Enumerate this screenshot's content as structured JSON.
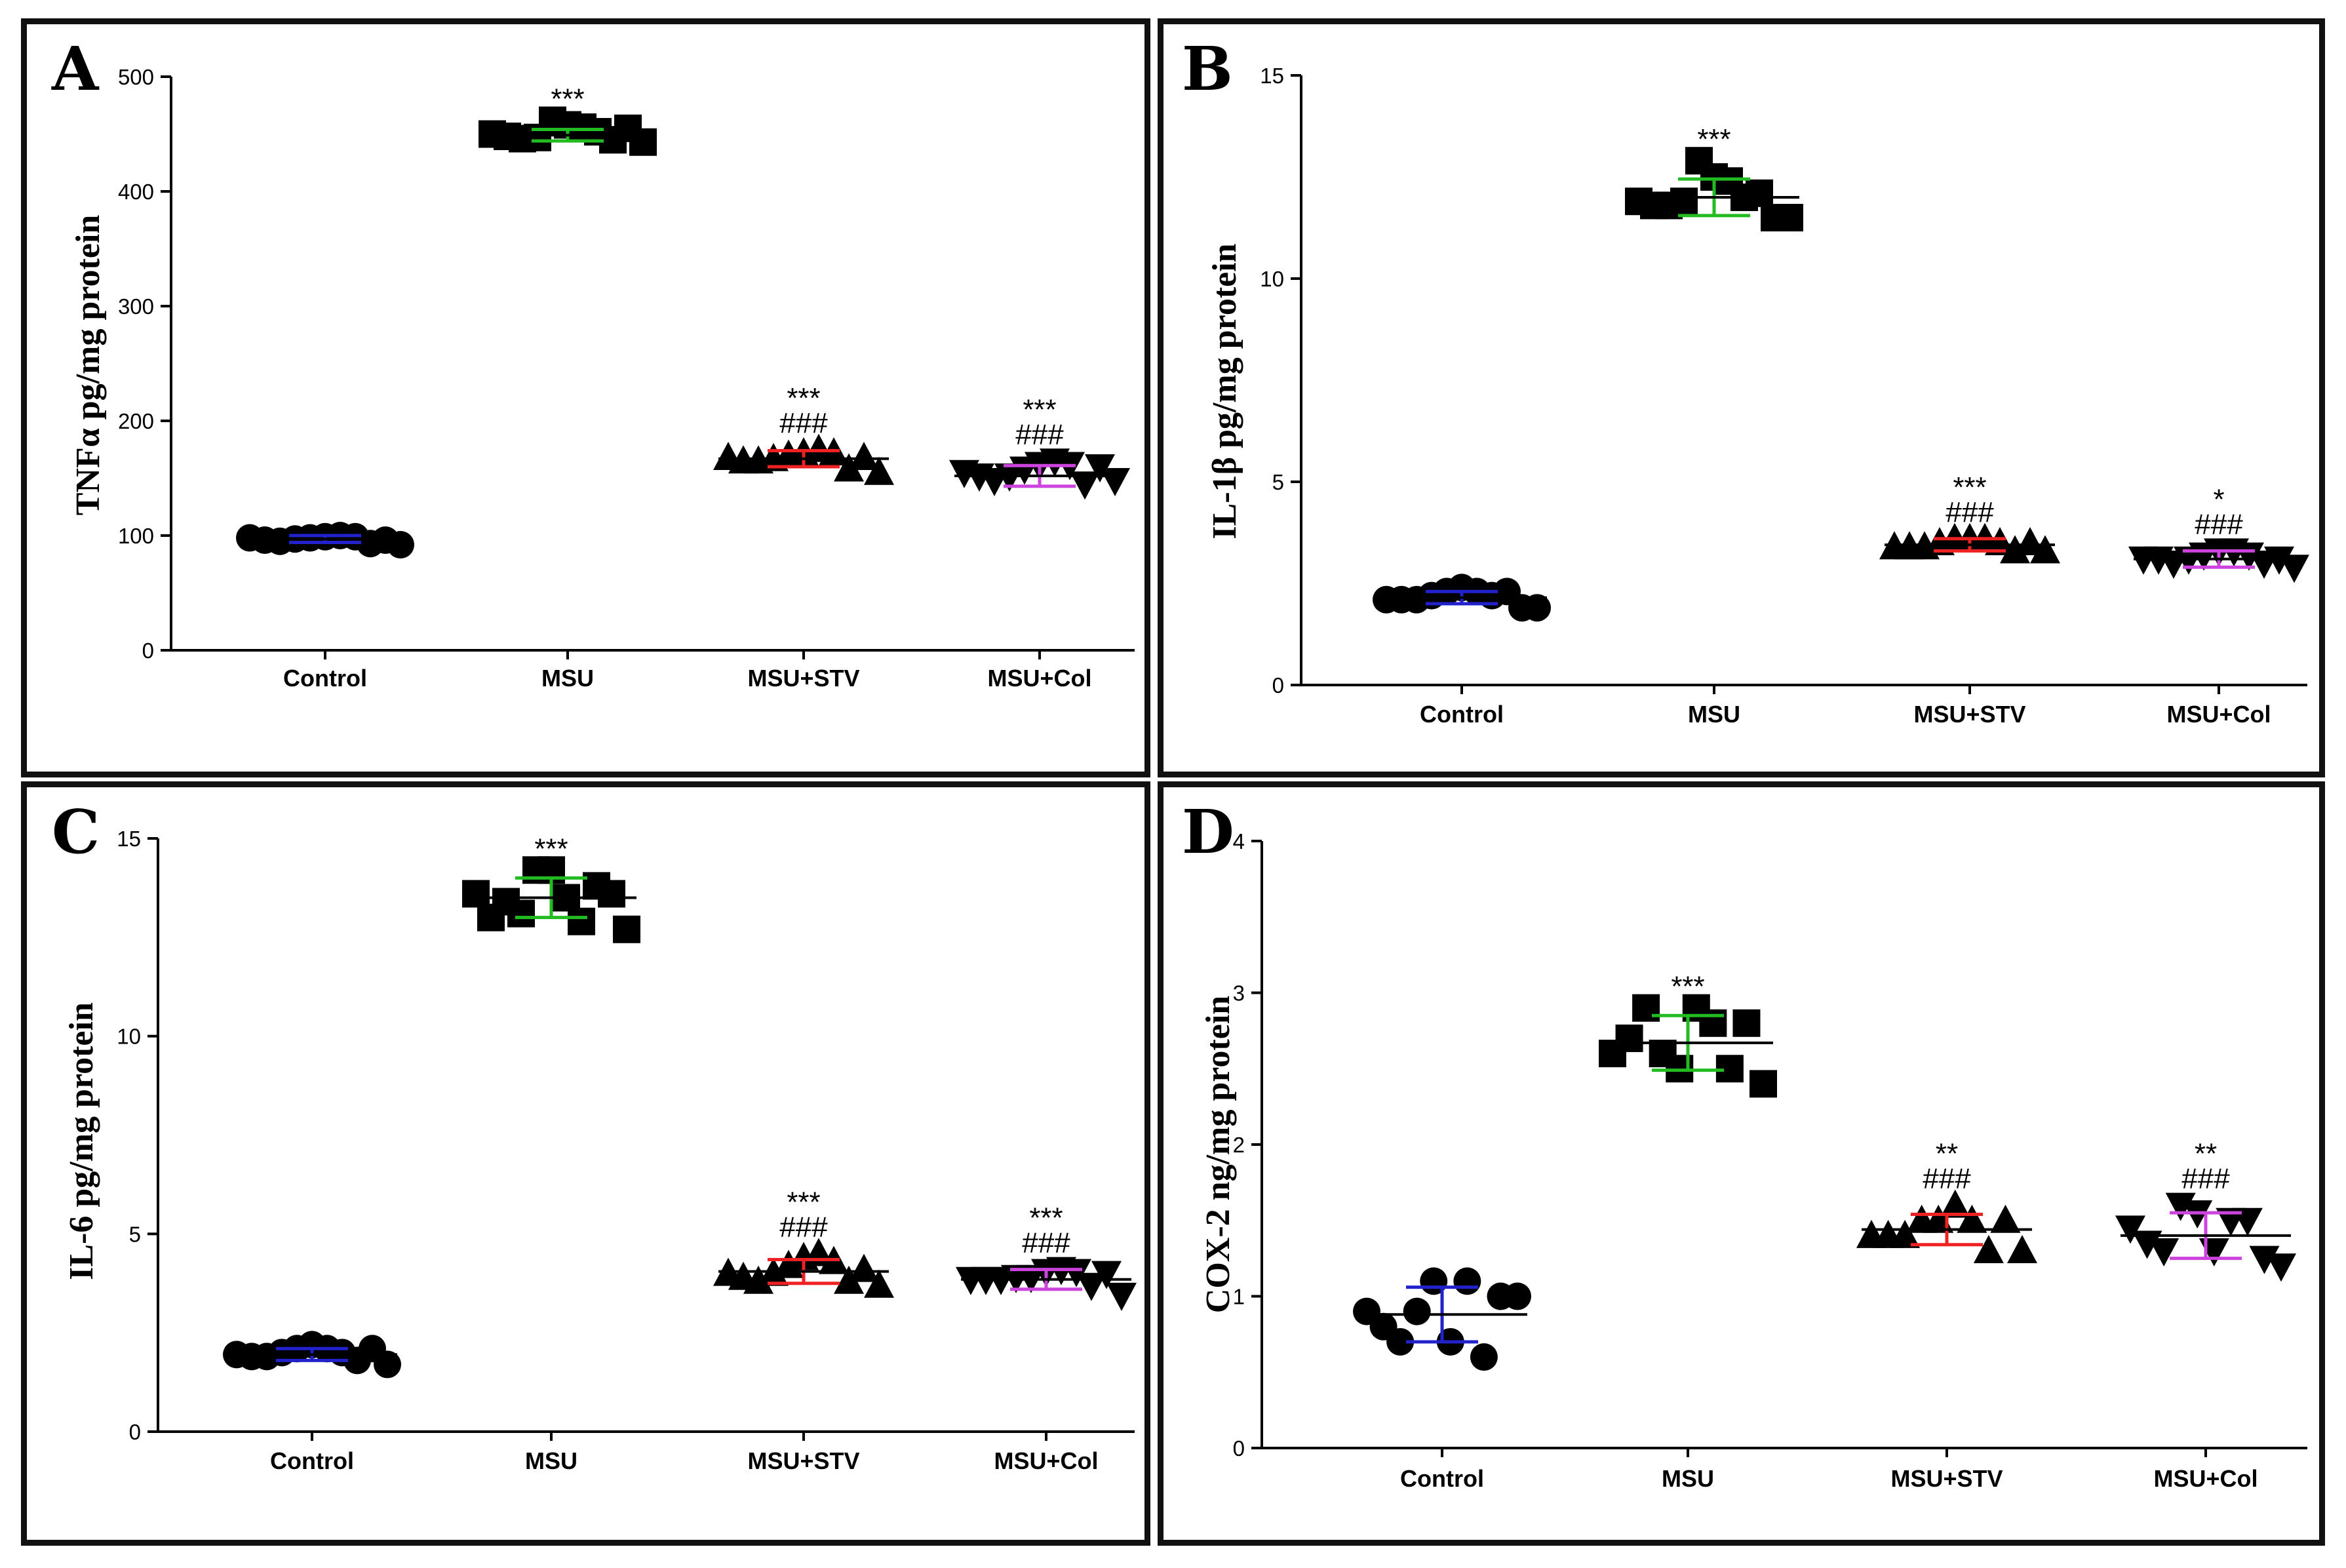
{
  "chart_data": [
    {
      "type": "scatter",
      "panel": "A",
      "title": "",
      "ylabel": "TNFα pg/mg protein",
      "ylim": [
        0,
        500
      ],
      "yticks": [
        "0",
        "100",
        "200",
        "300",
        "400",
        "500"
      ],
      "categories": [
        "Control",
        "MSU",
        "MSU+STV",
        "MSU+Col"
      ],
      "marker": [
        "circle",
        "square",
        "triangle-up",
        "triangle-down"
      ],
      "error_colors": [
        "#2222cc",
        "#22bb22",
        "#ee2222",
        "#cc44dd"
      ],
      "series": [
        {
          "name": "Control",
          "mean": 97,
          "sd": 3,
          "values": [
            98,
            96,
            95,
            97,
            98,
            99,
            100,
            99,
            93,
            96,
            92
          ]
        },
        {
          "name": "MSU",
          "mean": 449,
          "sd": 5,
          "values": [
            450,
            448,
            446,
            447,
            462,
            458,
            456,
            452,
            445,
            455,
            443
          ]
        },
        {
          "name": "MSU+STV",
          "mean": 167,
          "sd": 7,
          "values": [
            168,
            165,
            165,
            167,
            170,
            172,
            175,
            172,
            158,
            168,
            155
          ]
        },
        {
          "name": "MSU+Col",
          "mean": 152,
          "sd": 9,
          "values": [
            155,
            152,
            148,
            152,
            158,
            162,
            165,
            162,
            145,
            160,
            148
          ]
        }
      ],
      "annotations": [
        {
          "category": "MSU",
          "lines": [
            "***"
          ]
        },
        {
          "category": "MSU+STV",
          "lines": [
            "***",
            "###"
          ]
        },
        {
          "category": "MSU+Col",
          "lines": [
            "***",
            "###"
          ]
        }
      ]
    },
    {
      "type": "scatter",
      "panel": "B",
      "title": "",
      "ylabel": "IL-1β pg/mg protein",
      "ylim": [
        0,
        15
      ],
      "yticks": [
        "0",
        "5",
        "10",
        "15"
      ],
      "categories": [
        "Control",
        "MSU",
        "MSU+STV",
        "MSU+Col"
      ],
      "marker": [
        "circle",
        "square",
        "triangle-up",
        "triangle-down"
      ],
      "error_colors": [
        "#2222cc",
        "#22bb22",
        "#ee2222",
        "#cc44dd"
      ],
      "series": [
        {
          "name": "Control",
          "mean": 2.15,
          "sd": 0.15,
          "values": [
            2.1,
            2.1,
            2.1,
            2.2,
            2.3,
            2.4,
            2.3,
            2.2,
            2.3,
            1.9,
            1.9
          ]
        },
        {
          "name": "MSU",
          "mean": 12.0,
          "sd": 0.45,
          "values": [
            11.9,
            11.8,
            11.8,
            11.9,
            12.9,
            12.5,
            12.4,
            12.0,
            12.1,
            11.5,
            11.5
          ]
        },
        {
          "name": "MSU+STV",
          "mean": 3.45,
          "sd": 0.15,
          "values": [
            3.4,
            3.4,
            3.4,
            3.5,
            3.6,
            3.6,
            3.6,
            3.5,
            3.3,
            3.5,
            3.3
          ]
        },
        {
          "name": "MSU+Col",
          "mean": 3.1,
          "sd": 0.2,
          "values": [
            3.1,
            3.1,
            3.0,
            3.1,
            3.2,
            3.3,
            3.3,
            3.2,
            3.0,
            3.1,
            2.9
          ]
        }
      ],
      "annotations": [
        {
          "category": "MSU",
          "lines": [
            "***"
          ]
        },
        {
          "category": "MSU+STV",
          "lines": [
            "***",
            "###"
          ]
        },
        {
          "category": "MSU+Col",
          "lines": [
            "*",
            "###"
          ]
        }
      ]
    },
    {
      "type": "scatter",
      "panel": "C",
      "title": "",
      "ylabel": "IL-6 pg/mg protein",
      "ylim": [
        0,
        15
      ],
      "yticks": [
        "0",
        "5",
        "10",
        "15"
      ],
      "categories": [
        "Control",
        "MSU",
        "MSU+STV",
        "MSU+Col"
      ],
      "marker": [
        "circle",
        "square",
        "triangle-up",
        "triangle-down"
      ],
      "error_colors": [
        "#2222cc",
        "#22bb22",
        "#ee2222",
        "#cc44dd"
      ],
      "series": [
        {
          "name": "Control",
          "mean": 1.95,
          "sd": 0.15,
          "values": [
            1.95,
            1.9,
            1.9,
            2.0,
            2.1,
            2.2,
            2.1,
            2.0,
            1.8,
            2.1,
            1.7
          ]
        },
        {
          "name": "MSU",
          "mean": 13.5,
          "sd": 0.5,
          "values": [
            13.6,
            13.0,
            13.4,
            13.1,
            14.2,
            14.2,
            13.5,
            12.9,
            13.8,
            13.6,
            12.7
          ]
        },
        {
          "name": "MSU+STV",
          "mean": 4.05,
          "sd": 0.3,
          "values": [
            4.0,
            3.9,
            3.8,
            4.0,
            4.2,
            4.4,
            4.5,
            4.3,
            3.8,
            4.1,
            3.7
          ]
        },
        {
          "name": "MSU+Col",
          "mean": 3.85,
          "sd": 0.25,
          "values": [
            3.85,
            3.85,
            3.85,
            3.9,
            3.9,
            4.05,
            4.1,
            4.05,
            3.7,
            4.0,
            3.45
          ]
        }
      ],
      "annotations": [
        {
          "category": "MSU",
          "lines": [
            "***"
          ]
        },
        {
          "category": "MSU+STV",
          "lines": [
            "***",
            "###"
          ]
        },
        {
          "category": "MSU+Col",
          "lines": [
            "***",
            "###"
          ]
        }
      ]
    },
    {
      "type": "scatter",
      "panel": "D",
      "title": "",
      "ylabel": "COX-2 ng/mg protein",
      "ylim": [
        0,
        4
      ],
      "yticks": [
        "0",
        "1",
        "2",
        "3",
        "4"
      ],
      "categories": [
        "Control",
        "MSU",
        "MSU+STV",
        "MSU+Col"
      ],
      "marker": [
        "circle",
        "square",
        "triangle-up",
        "triangle-down"
      ],
      "error_colors": [
        "#2222cc",
        "#22bb22",
        "#ee2222",
        "#cc44dd"
      ],
      "series": [
        {
          "name": "Control",
          "mean": 0.88,
          "sd": 0.18,
          "values": [
            0.9,
            0.8,
            0.7,
            0.9,
            1.1,
            0.7,
            1.1,
            0.6,
            1.0,
            1.0
          ]
        },
        {
          "name": "MSU",
          "mean": 2.67,
          "sd": 0.18,
          "values": [
            2.6,
            2.7,
            2.9,
            2.6,
            2.5,
            2.9,
            2.8,
            2.5,
            2.8,
            2.4
          ]
        },
        {
          "name": "MSU+STV",
          "mean": 1.44,
          "sd": 0.1,
          "values": [
            1.4,
            1.4,
            1.4,
            1.5,
            1.5,
            1.6,
            1.5,
            1.3,
            1.5,
            1.3
          ]
        },
        {
          "name": "MSU+Col",
          "mean": 1.4,
          "sd": 0.15,
          "values": [
            1.45,
            1.35,
            1.3,
            1.6,
            1.55,
            1.3,
            1.5,
            1.5,
            1.25,
            1.2
          ]
        }
      ],
      "annotations": [
        {
          "category": "MSU",
          "lines": [
            "***"
          ]
        },
        {
          "category": "MSU+STV",
          "lines": [
            "**",
            "###"
          ]
        },
        {
          "category": "MSU+Col",
          "lines": [
            "**",
            "###"
          ]
        }
      ]
    }
  ]
}
